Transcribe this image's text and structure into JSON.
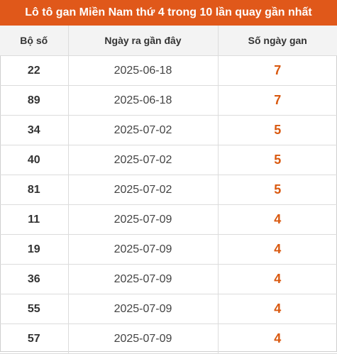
{
  "title": "Lô tô gan Miền Nam thứ 4 trong 10 lần quay gần nhất",
  "colors": {
    "title_bg": "#e0581a",
    "accent": "#d9580e"
  },
  "columns": [
    "Bộ số",
    "Ngày ra gần đây",
    "Số ngày gan"
  ],
  "rows": [
    {
      "number": "22",
      "date": "2025-06-18",
      "days": "7"
    },
    {
      "number": "89",
      "date": "2025-06-18",
      "days": "7"
    },
    {
      "number": "34",
      "date": "2025-07-02",
      "days": "5"
    },
    {
      "number": "40",
      "date": "2025-07-02",
      "days": "5"
    },
    {
      "number": "81",
      "date": "2025-07-02",
      "days": "5"
    },
    {
      "number": "11",
      "date": "2025-07-09",
      "days": "4"
    },
    {
      "number": "19",
      "date": "2025-07-09",
      "days": "4"
    },
    {
      "number": "36",
      "date": "2025-07-09",
      "days": "4"
    },
    {
      "number": "55",
      "date": "2025-07-09",
      "days": "4"
    },
    {
      "number": "57",
      "date": "2025-07-09",
      "days": "4"
    }
  ]
}
